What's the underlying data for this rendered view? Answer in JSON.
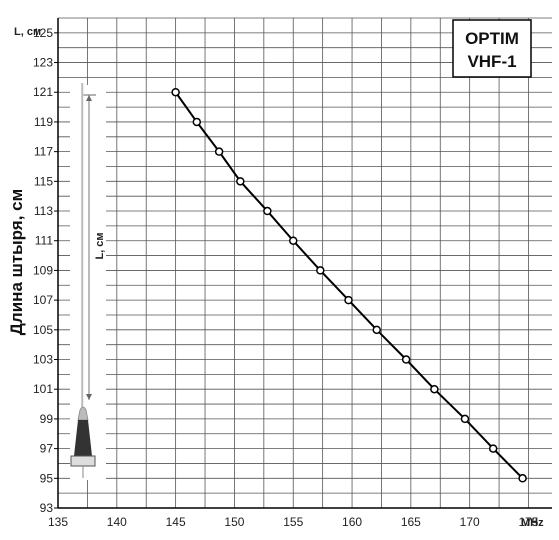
{
  "chart_data": {
    "type": "line",
    "title": "",
    "brand_line1": "OPTIM",
    "brand_line2": "VHF-1",
    "ylabel": "Длина штыря, см",
    "y_unit_label": "L, см",
    "x_unit_label": "MHz",
    "antenna_label": "L, см",
    "xlim": [
      135,
      177
    ],
    "ylim": [
      93,
      126
    ],
    "x_ticks": [
      135,
      140,
      145,
      150,
      155,
      160,
      165,
      170,
      175
    ],
    "y_ticks": [
      93,
      95,
      97,
      99,
      101,
      103,
      105,
      107,
      109,
      111,
      113,
      115,
      117,
      119,
      121,
      123,
      125
    ],
    "grid": true,
    "series": [
      {
        "x": [
          145,
          146.8,
          148.7,
          150.5,
          152.8,
          155,
          157.3,
          159.7,
          162.1,
          164.6,
          167,
          169.6,
          172,
          174.5
        ],
        "y": [
          121,
          119,
          117,
          115,
          113,
          111,
          109,
          107,
          105,
          103,
          101,
          99,
          97,
          95
        ]
      }
    ]
  },
  "colors": {
    "line": "#000000",
    "grid": "#555555",
    "marker_fill": "#ffffff",
    "antenna_dark": "#333333",
    "antenna_tip": "#bbbbbb"
  }
}
